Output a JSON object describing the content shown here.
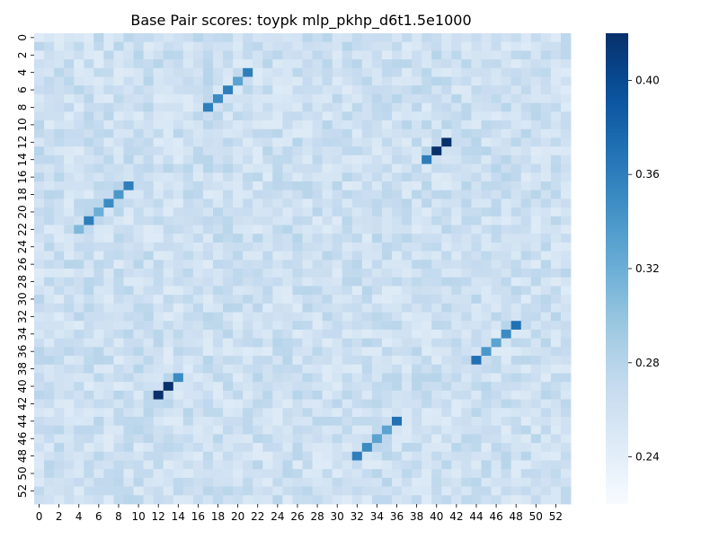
{
  "chart_data": {
    "type": "heatmap",
    "title": "Base Pair scores: toypk mlp_pkhp_d6t1.5e1000",
    "xlabel": "",
    "ylabel": "",
    "n": 54,
    "x_tick_labels": [
      "0",
      "2",
      "4",
      "6",
      "8",
      "10",
      "12",
      "14",
      "16",
      "18",
      "20",
      "22",
      "24",
      "26",
      "28",
      "30",
      "32",
      "34",
      "36",
      "38",
      "40",
      "42",
      "44",
      "46",
      "48",
      "50",
      "52"
    ],
    "y_tick_labels": [
      "0",
      "2",
      "4",
      "6",
      "8",
      "10",
      "12",
      "14",
      "16",
      "18",
      "20",
      "22",
      "24",
      "26",
      "28",
      "30",
      "32",
      "34",
      "36",
      "38",
      "40",
      "42",
      "44",
      "46",
      "48",
      "50",
      "52"
    ],
    "colorscale": "Blues",
    "vmin": 0.22,
    "vmax": 0.42,
    "colorbar_ticks": [
      "0.24",
      "0.28",
      "0.32",
      "0.36",
      "0.40"
    ],
    "background_mean": 0.262,
    "highlighted_pairs": [
      {
        "i": 4,
        "j": 21,
        "value": 0.36
      },
      {
        "i": 5,
        "j": 20,
        "value": 0.33
      },
      {
        "i": 6,
        "j": 19,
        "value": 0.36
      },
      {
        "i": 7,
        "j": 18,
        "value": 0.35
      },
      {
        "i": 8,
        "j": 17,
        "value": 0.36
      },
      {
        "i": 12,
        "j": 41,
        "value": 0.42
      },
      {
        "i": 13,
        "j": 40,
        "value": 0.42
      },
      {
        "i": 14,
        "j": 39,
        "value": 0.36
      },
      {
        "i": 17,
        "j": 9,
        "value": 0.36
      },
      {
        "i": 18,
        "j": 8,
        "value": 0.34
      },
      {
        "i": 19,
        "j": 7,
        "value": 0.35
      },
      {
        "i": 20,
        "j": 6,
        "value": 0.32
      },
      {
        "i": 21,
        "j": 5,
        "value": 0.36
      },
      {
        "i": 22,
        "j": 4,
        "value": 0.31
      },
      {
        "i": 33,
        "j": 48,
        "value": 0.37
      },
      {
        "i": 34,
        "j": 47,
        "value": 0.35
      },
      {
        "i": 35,
        "j": 46,
        "value": 0.33
      },
      {
        "i": 36,
        "j": 45,
        "value": 0.34
      },
      {
        "i": 37,
        "j": 44,
        "value": 0.37
      },
      {
        "i": 39,
        "j": 14,
        "value": 0.35
      },
      {
        "i": 40,
        "j": 13,
        "value": 0.42
      },
      {
        "i": 41,
        "j": 12,
        "value": 0.42
      },
      {
        "i": 44,
        "j": 36,
        "value": 0.37
      },
      {
        "i": 45,
        "j": 35,
        "value": 0.33
      },
      {
        "i": 46,
        "j": 34,
        "value": 0.33
      },
      {
        "i": 47,
        "j": 33,
        "value": 0.35
      },
      {
        "i": 48,
        "j": 32,
        "value": 0.36
      }
    ]
  }
}
